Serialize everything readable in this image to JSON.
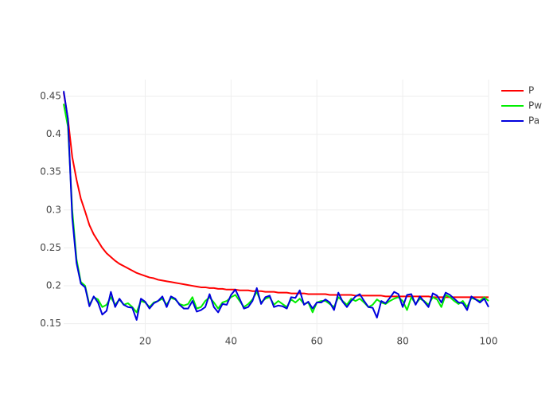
{
  "chart_data": {
    "type": "line",
    "x": [
      1,
      2,
      3,
      4,
      5,
      6,
      7,
      8,
      9,
      10,
      11,
      12,
      13,
      14,
      15,
      16,
      17,
      18,
      19,
      20,
      21,
      22,
      23,
      24,
      25,
      26,
      27,
      28,
      29,
      30,
      31,
      32,
      33,
      34,
      35,
      36,
      37,
      38,
      39,
      40,
      41,
      42,
      43,
      44,
      45,
      46,
      47,
      48,
      49,
      50,
      51,
      52,
      53,
      54,
      55,
      56,
      57,
      58,
      59,
      60,
      61,
      62,
      63,
      64,
      65,
      66,
      67,
      68,
      69,
      70,
      71,
      72,
      73,
      74,
      75,
      76,
      77,
      78,
      79,
      80,
      81,
      82,
      83,
      84,
      85,
      86,
      87,
      88,
      89,
      90,
      91,
      92,
      93,
      94,
      95,
      96,
      97,
      98,
      99,
      100
    ],
    "series": [
      {
        "name": "P",
        "color": "#ff0000",
        "values": [
          0.455,
          0.42,
          0.37,
          0.34,
          0.315,
          0.298,
          0.28,
          0.268,
          0.259,
          0.25,
          0.243,
          0.238,
          0.233,
          0.229,
          0.226,
          0.223,
          0.22,
          0.217,
          0.215,
          0.213,
          0.211,
          0.21,
          0.208,
          0.207,
          0.206,
          0.205,
          0.204,
          0.203,
          0.202,
          0.201,
          0.2,
          0.199,
          0.198,
          0.198,
          0.197,
          0.197,
          0.196,
          0.196,
          0.195,
          0.195,
          0.195,
          0.194,
          0.194,
          0.194,
          0.193,
          0.193,
          0.193,
          0.192,
          0.192,
          0.192,
          0.191,
          0.191,
          0.191,
          0.19,
          0.19,
          0.19,
          0.19,
          0.189,
          0.189,
          0.189,
          0.189,
          0.189,
          0.188,
          0.188,
          0.188,
          0.188,
          0.188,
          0.188,
          0.187,
          0.187,
          0.187,
          0.187,
          0.187,
          0.187,
          0.187,
          0.186,
          0.186,
          0.186,
          0.186,
          0.186,
          0.186,
          0.186,
          0.186,
          0.186,
          0.186,
          0.186,
          0.185,
          0.185,
          0.185,
          0.185,
          0.185,
          0.185,
          0.185,
          0.185,
          0.185,
          0.185,
          0.185,
          0.185,
          0.185,
          0.185
        ]
      },
      {
        "name": "Pw",
        "color": "#00ee00",
        "values": [
          0.44,
          0.41,
          0.3,
          0.235,
          0.205,
          0.2,
          0.175,
          0.185,
          0.182,
          0.172,
          0.175,
          0.185,
          0.175,
          0.182,
          0.175,
          0.177,
          0.172,
          0.165,
          0.18,
          0.178,
          0.172,
          0.178,
          0.18,
          0.183,
          0.175,
          0.184,
          0.182,
          0.176,
          0.174,
          0.176,
          0.185,
          0.17,
          0.172,
          0.18,
          0.185,
          0.178,
          0.17,
          0.178,
          0.18,
          0.185,
          0.188,
          0.18,
          0.172,
          0.176,
          0.182,
          0.192,
          0.178,
          0.183,
          0.185,
          0.175,
          0.18,
          0.176,
          0.172,
          0.182,
          0.178,
          0.183,
          0.176,
          0.178,
          0.165,
          0.178,
          0.18,
          0.18,
          0.176,
          0.172,
          0.185,
          0.18,
          0.175,
          0.183,
          0.18,
          0.183,
          0.178,
          0.172,
          0.175,
          0.182,
          0.178,
          0.176,
          0.18,
          0.183,
          0.185,
          0.18,
          0.168,
          0.185,
          0.176,
          0.183,
          0.18,
          0.175,
          0.185,
          0.182,
          0.172,
          0.188,
          0.185,
          0.18,
          0.176,
          0.18,
          0.172,
          0.184,
          0.182,
          0.18,
          0.185,
          0.18
        ]
      },
      {
        "name": "Pa",
        "color": "#0000dd",
        "values": [
          0.457,
          0.42,
          0.29,
          0.23,
          0.203,
          0.198,
          0.173,
          0.186,
          0.178,
          0.162,
          0.167,
          0.192,
          0.172,
          0.183,
          0.175,
          0.172,
          0.171,
          0.155,
          0.183,
          0.179,
          0.17,
          0.177,
          0.18,
          0.186,
          0.172,
          0.186,
          0.183,
          0.175,
          0.17,
          0.17,
          0.18,
          0.166,
          0.168,
          0.172,
          0.189,
          0.172,
          0.165,
          0.176,
          0.175,
          0.188,
          0.195,
          0.183,
          0.17,
          0.172,
          0.18,
          0.197,
          0.176,
          0.185,
          0.187,
          0.172,
          0.174,
          0.173,
          0.17,
          0.185,
          0.184,
          0.194,
          0.175,
          0.179,
          0.17,
          0.178,
          0.178,
          0.182,
          0.178,
          0.168,
          0.191,
          0.179,
          0.172,
          0.18,
          0.186,
          0.189,
          0.18,
          0.172,
          0.171,
          0.158,
          0.18,
          0.177,
          0.184,
          0.192,
          0.189,
          0.172,
          0.188,
          0.189,
          0.175,
          0.186,
          0.179,
          0.172,
          0.19,
          0.187,
          0.178,
          0.191,
          0.188,
          0.183,
          0.178,
          0.177,
          0.168,
          0.186,
          0.182,
          0.178,
          0.183,
          0.172
        ]
      }
    ],
    "xlim": [
      1,
      100
    ],
    "xticks": [
      20,
      40,
      60,
      80,
      100
    ],
    "ylim": [
      0.136,
      0.472
    ],
    "yticks": [
      0.15,
      0.2,
      0.25,
      0.3,
      0.35,
      0.4,
      0.45
    ],
    "grid": true,
    "legend": "right"
  }
}
